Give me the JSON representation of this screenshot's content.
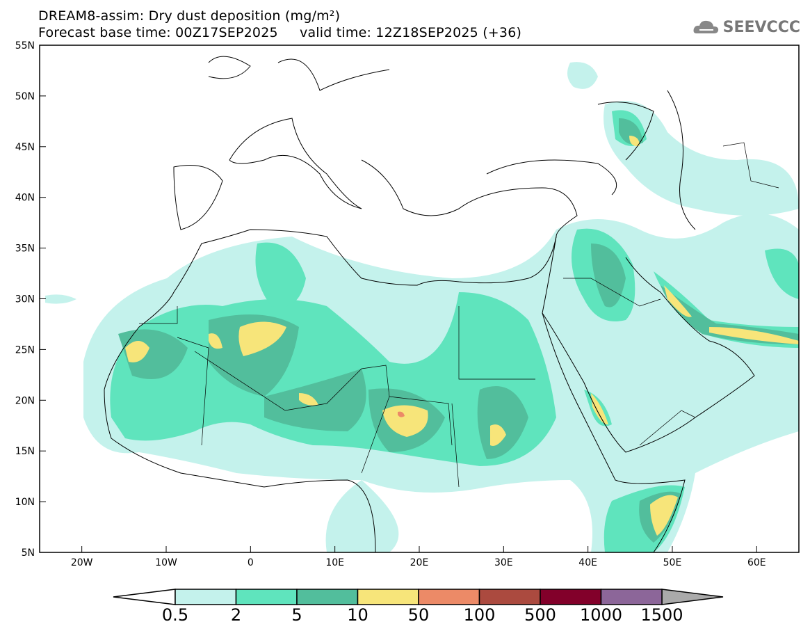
{
  "title": "DREAM8-assim: Dry dust deposition (mg/m²)",
  "subtitle_base": "Forecast base time: 00Z17SEP2025",
  "subtitle_valid": "valid time: 12Z18SEP2025 (+36)",
  "logo_text": "SEEVCCC",
  "lat_labels": [
    "55N",
    "50N",
    "45N",
    "40N",
    "35N",
    "30N",
    "25N",
    "20N",
    "15N",
    "10N",
    "5N"
  ],
  "lon_labels": [
    "20W",
    "10W",
    "0",
    "10E",
    "20E",
    "30E",
    "40E",
    "50E",
    "60E"
  ],
  "colorbar": {
    "labels": [
      "0.5",
      "2",
      "5",
      "10",
      "50",
      "100",
      "500",
      "1000",
      "1500"
    ],
    "colors": [
      "#c4f2ec",
      "#5fe4bd",
      "#52be9c",
      "#f7e57a",
      "#ec8a67",
      "#ab4a3f",
      "#82002a",
      "#8c6699"
    ],
    "over_color": "#aaaaaa",
    "under_color": "#ffffff"
  }
}
